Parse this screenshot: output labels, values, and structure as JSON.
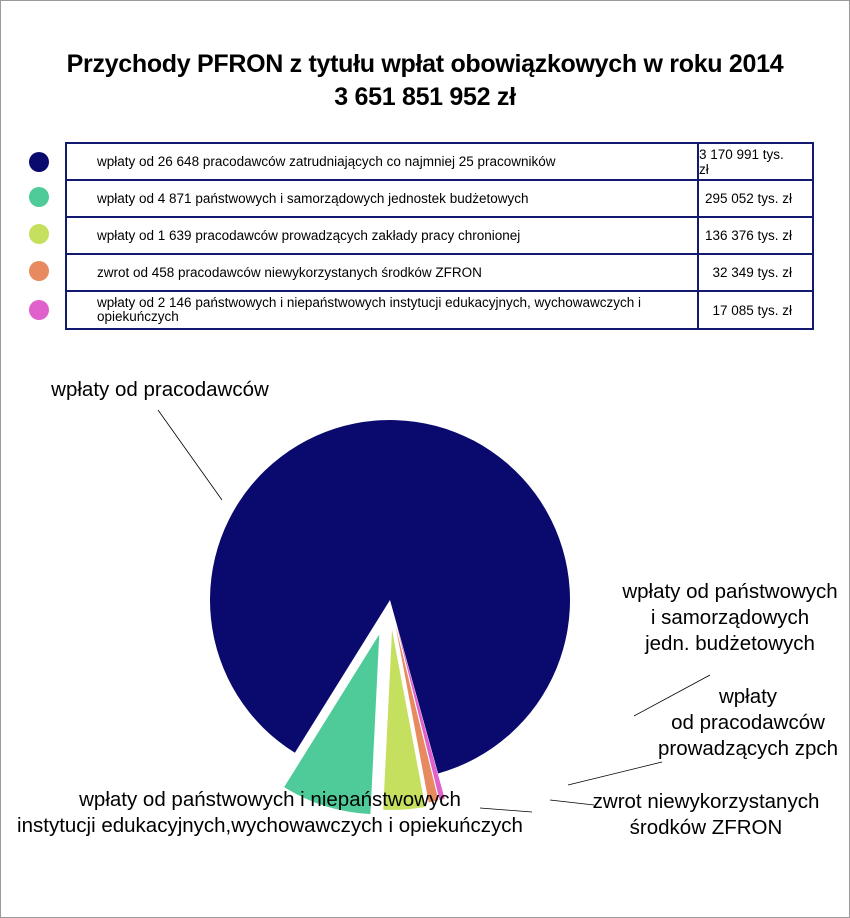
{
  "title_line1": "Przychody PFRON z tytułu wpłat obowiązkowych w roku 2014",
  "title_line2": "3 651 851 952 zł",
  "legend": [
    {
      "color": "#0a0a6e",
      "description": "wpłaty od 26 648 pracodawców zatrudniających co najmniej 25 pracowników",
      "value": "3 170 991 tys. zł"
    },
    {
      "color": "#4ecb98",
      "description": "wpłaty od 4 871 państwowych i samorządowych jednostek budżetowych",
      "value": "295 052 tys. zł"
    },
    {
      "color": "#c4e05e",
      "description": "wpłaty od 1 639 pracodawców prowadzących zakłady pracy chronionej",
      "value": "136 376 tys. zł"
    },
    {
      "color": "#e88a5f",
      "description": "zwrot od 458 pracodawców niewykorzystanych środków ZFRON",
      "value": "32 349 tys. zł"
    },
    {
      "color": "#e060cc",
      "description": "wpłaty od 2 146 państwowych i niepaństwowych instytucji edukacyjnych, wychowawczych i opiekuńczych",
      "value": "17 085 tys. zł"
    }
  ],
  "chart_data": {
    "type": "pie",
    "title": "Przychody PFRON z tytułu wpłat obowiązkowych w roku 2014",
    "subtitle": "3 651 851 952 zł",
    "unit": "tys. zł",
    "categories": [
      "wpłaty od pracodawców",
      "wpłaty od państwowych i samorządowych jedn. budżetowych",
      "wpłaty od pracodawców prowadzących zpch",
      "zwrot niewykorzystanych środków ZFRON",
      "wpłaty od państwowych i niepaństwowych instytucji edukacyjnych,wychowawczych i opiekuńczych"
    ],
    "values": [
      3170991,
      295052,
      136376,
      32349,
      17085
    ],
    "colors": [
      "#0a0a6e",
      "#4ecb98",
      "#c4e05e",
      "#e88a5f",
      "#e060cc"
    ],
    "labels": [
      [
        "wpłaty od pracodawców"
      ],
      [
        "wpłaty od państwowych",
        "i samorządowych",
        "jedn. budżetowych"
      ],
      [
        "wpłaty",
        "od pracodawców",
        "prowadzących zpch"
      ],
      [
        "zwrot niewykorzystanych",
        "środków ZFRON"
      ],
      [
        "wpłaty od państwowych i niepaństwowych",
        "instytucji edukacyjnych,wychowawczych i opiekuńczych"
      ]
    ]
  }
}
